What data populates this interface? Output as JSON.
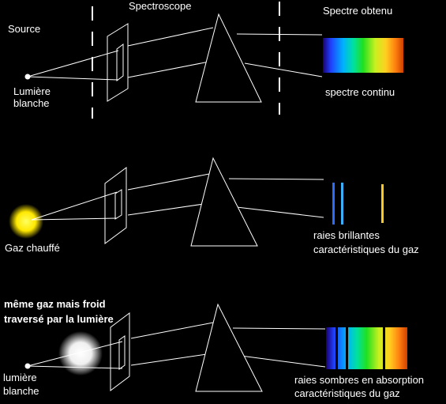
{
  "labels": {
    "source": "Source",
    "spectroscope": "Spectroscope",
    "spectre_obtenu": "Spectre obtenu",
    "lumiere_blanche_1_line1": "Lumière",
    "lumiere_blanche_1_line2": "blanche",
    "spectre_continu": "spectre continu",
    "gaz_chauffe": "Gaz chauffé",
    "raies_brillantes_line1": "raies brillantes",
    "raies_brillantes_line2": "caractéristiques du gaz",
    "meme_gaz_line1": "même gaz mais froid",
    "meme_gaz_line2": "traversé par la lumière",
    "lumiere_blanche_3_line1": "lumière",
    "lumiere_blanche_3_line2": "blanche",
    "raies_sombres_line1": "raies sombres en absorption",
    "raies_sombres_line2": "caractéristiques du gaz"
  },
  "colors": {
    "background": "#000000",
    "ray": "#ffffff",
    "sun_glow": "#ffee00",
    "cold_gas_glow": "#ffffff",
    "emission_blue_1": "#2a6cff",
    "emission_blue_2": "#3ab0ff",
    "emission_yellow": "#ffc820"
  }
}
